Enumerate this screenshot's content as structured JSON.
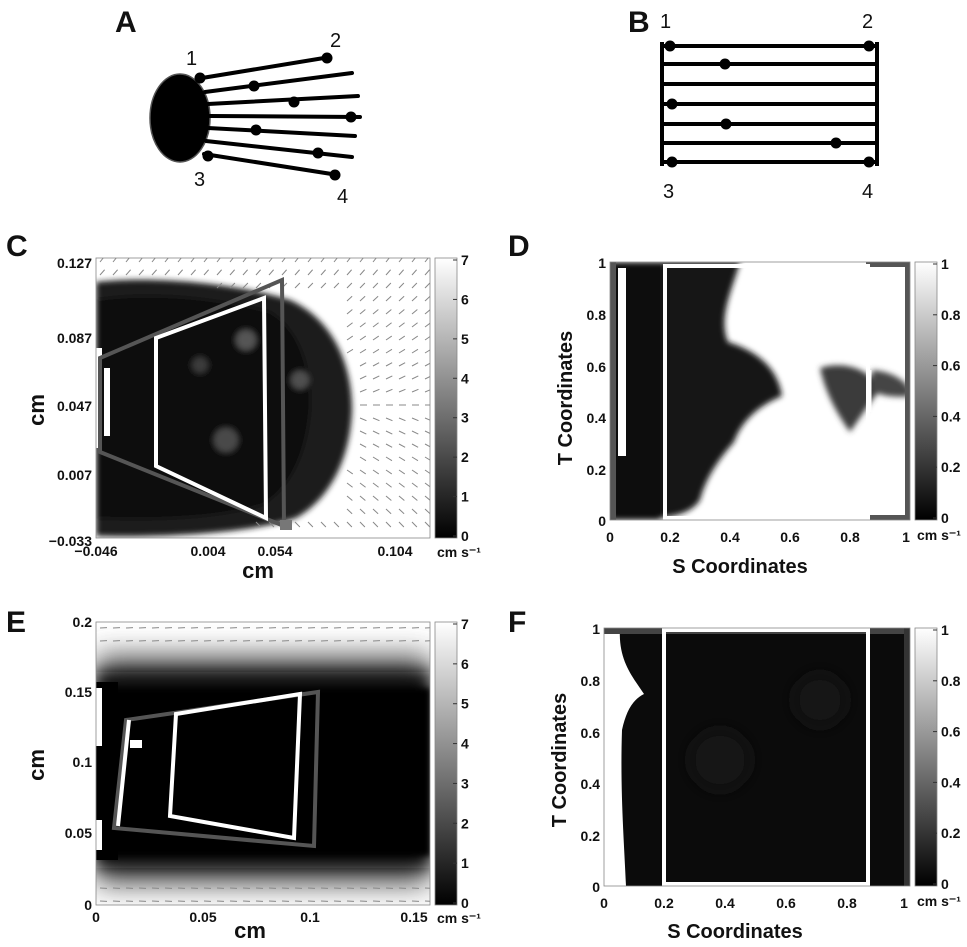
{
  "panels": {
    "A": {
      "label": "A",
      "corners": [
        "1",
        "2",
        "3",
        "4"
      ]
    },
    "B": {
      "label": "B",
      "corners": [
        "1",
        "2",
        "3",
        "4"
      ]
    },
    "C": {
      "label": "C",
      "xlabel": "cm",
      "ylabel": "cm",
      "xticks": [
        "−0.046",
        "0.004",
        "0.054",
        "0.104"
      ],
      "yticks": [
        "0.127",
        "0.087",
        "0.047",
        "0.007",
        "−0.033"
      ],
      "colorbar": {
        "ticks": [
          "7",
          "6",
          "5",
          "4",
          "3",
          "2",
          "1",
          "0"
        ],
        "unit": "cm s⁻¹"
      }
    },
    "D": {
      "label": "D",
      "xlabel": "S Coordinates",
      "ylabel": "T Coordinates",
      "xticks": [
        "0",
        "0.2",
        "0.4",
        "0.6",
        "0.8",
        "1"
      ],
      "yticks": [
        "1",
        "0.8",
        "0.6",
        "0.4",
        "0.2",
        "0"
      ],
      "colorbar": {
        "ticks": [
          "1",
          "0.8",
          "0.6",
          "0.4",
          "0.2",
          "0"
        ],
        "unit": "cm s⁻¹"
      }
    },
    "E": {
      "label": "E",
      "xlabel": "cm",
      "ylabel": "cm",
      "xticks": [
        "0",
        "0.05",
        "0.1",
        "0.15"
      ],
      "yticks": [
        "0.2",
        "0.15",
        "0.1",
        "0.05",
        "0"
      ],
      "colorbar": {
        "ticks": [
          "7",
          "6",
          "5",
          "4",
          "3",
          "2",
          "1",
          "0"
        ],
        "unit": "cm s⁻¹"
      }
    },
    "F": {
      "label": "F",
      "xlabel": "S Coordinates",
      "ylabel": "T Coordinates",
      "xticks": [
        "0",
        "0.2",
        "0.4",
        "0.6",
        "0.8",
        "1"
      ],
      "yticks": [
        "1",
        "0.8",
        "0.6",
        "0.4",
        "0.2",
        "0"
      ],
      "colorbar": {
        "ticks": [
          "1",
          "0.8",
          "0.6",
          "0.4",
          "0.2",
          "0"
        ],
        "unit": "cm s⁻¹"
      }
    }
  },
  "chart_data": [
    {
      "type": "heatmap",
      "panel": "C",
      "xlabel": "cm",
      "ylabel": "cm",
      "xlim": [
        -0.046,
        0.104
      ],
      "ylim": [
        -0.033,
        0.127
      ],
      "colorbar_range": [
        0,
        7
      ]
    },
    {
      "type": "heatmap",
      "panel": "D",
      "xlabel": "S Coordinates",
      "ylabel": "T Coordinates",
      "xlim": [
        0,
        1
      ],
      "ylim": [
        0,
        1
      ],
      "colorbar_range": [
        0,
        1
      ]
    },
    {
      "type": "heatmap",
      "panel": "E",
      "xlabel": "cm",
      "ylabel": "cm",
      "xlim": [
        0,
        0.16
      ],
      "ylim": [
        0,
        0.2
      ],
      "colorbar_range": [
        0,
        7
      ]
    },
    {
      "type": "heatmap",
      "panel": "F",
      "xlabel": "S Coordinates",
      "ylabel": "T Coordinates",
      "xlim": [
        0,
        1
      ],
      "ylim": [
        0,
        1
      ],
      "colorbar_range": [
        0,
        1
      ]
    }
  ]
}
